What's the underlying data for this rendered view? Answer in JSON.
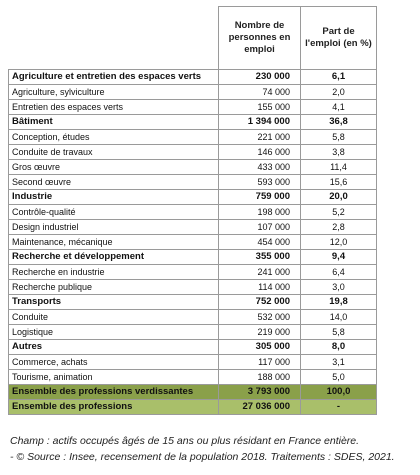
{
  "table": {
    "header": [
      "Nombre de personnes en emploi",
      "Part de l'emploi (en %)"
    ],
    "groups": [
      {
        "label": "Agriculture et entretien des espaces verts",
        "count": "230 000",
        "share": "6,1",
        "rows": [
          [
            "Agriculture, sylviculture",
            "74 000",
            "2,0"
          ],
          [
            "Entretien des espaces verts",
            "155 000",
            "4,1"
          ]
        ]
      },
      {
        "label": "Bâtiment",
        "count": "1 394 000",
        "share": "36,8",
        "rows": [
          [
            "Conception, études",
            "221 000",
            "5,8"
          ],
          [
            "Conduite de travaux",
            "146 000",
            "3,8"
          ],
          [
            "Gros œuvre",
            "433 000",
            "11,4"
          ],
          [
            "Second œuvre",
            "593 000",
            "15,6"
          ]
        ]
      },
      {
        "label": "Industrie",
        "count": "759 000",
        "share": "20,0",
        "rows": [
          [
            "Contrôle-qualité",
            "198 000",
            "5,2"
          ],
          [
            "Design industriel",
            "107 000",
            "2,8"
          ],
          [
            "Maintenance, mécanique",
            "454 000",
            "12,0"
          ]
        ]
      },
      {
        "label": "Recherche et développement",
        "count": "355 000",
        "share": "9,4",
        "rows": [
          [
            "Recherche en industrie",
            "241 000",
            "6,4"
          ],
          [
            "Recherche publique",
            "114 000",
            "3,0"
          ]
        ]
      },
      {
        "label": "Transports",
        "count": "752 000",
        "share": "19,8",
        "rows": [
          [
            "Conduite",
            "532 000",
            "14,0"
          ],
          [
            "Logistique",
            "219 000",
            "5,8"
          ]
        ]
      },
      {
        "label": "Autres",
        "count": "305 000",
        "share": "8,0",
        "rows": [
          [
            "Commerce, achats",
            "117 000",
            "3,1"
          ],
          [
            "Tourisme, animation",
            "188 000",
            "5,0"
          ]
        ]
      }
    ],
    "totals": [
      [
        "Ensemble des professions verdissantes",
        "3 793 000",
        "100,0"
      ],
      [
        "Ensemble des professions",
        "27 036 000",
        "-"
      ]
    ]
  },
  "notes": [
    "Champ : actifs occupés âgés de 15 ans ou plus résidant en France entière.",
    "- © Source : Insee, recensement de la population 2018. Traitements : SDES, 2021."
  ]
}
